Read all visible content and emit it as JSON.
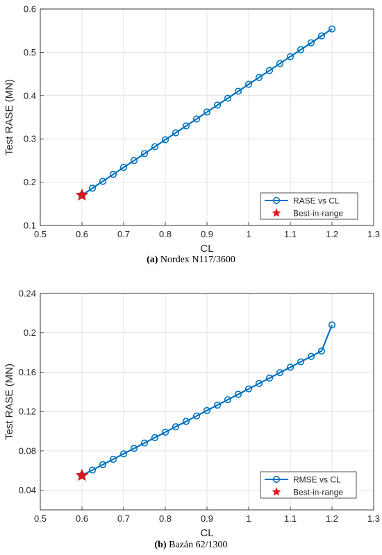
{
  "chart_data": [
    {
      "type": "line",
      "xlabel": "CL",
      "ylabel": "Test RASE (MN)",
      "xlim": [
        0.5,
        1.3
      ],
      "ylim": [
        0.1,
        0.6
      ],
      "xticks": [
        "0.5",
        "0.6",
        "0.7",
        "0.8",
        "0.9",
        "1",
        "1.1",
        "1.2",
        "1.3"
      ],
      "yticks": [
        "0.1",
        "0.2",
        "0.3",
        "0.4",
        "0.5",
        "0.6"
      ],
      "grid": true,
      "legend_position": "bottom-right",
      "series": [
        {
          "name": "RASE vs CL",
          "color": "#0072BD",
          "marker": "circle",
          "x": [
            0.6,
            0.625,
            0.65,
            0.675,
            0.7,
            0.725,
            0.75,
            0.775,
            0.8,
            0.825,
            0.85,
            0.875,
            0.9,
            0.925,
            0.95,
            0.975,
            1.0,
            1.025,
            1.05,
            1.075,
            1.1,
            1.125,
            1.15,
            1.175,
            1.2
          ],
          "y": [
            0.17,
            0.186,
            0.202,
            0.218,
            0.234,
            0.25,
            0.266,
            0.282,
            0.298,
            0.314,
            0.33,
            0.346,
            0.362,
            0.378,
            0.394,
            0.41,
            0.426,
            0.442,
            0.458,
            0.474,
            0.49,
            0.506,
            0.522,
            0.538,
            0.554
          ]
        },
        {
          "name": "Best-in-range",
          "color": "#D7191C",
          "marker": "star",
          "x": [
            0.6
          ],
          "y": [
            0.17
          ]
        }
      ]
    },
    {
      "type": "line",
      "xlabel": "CL",
      "ylabel": "Test RASE (MN)",
      "xlim": [
        0.5,
        1.3
      ],
      "ylim": [
        0.02,
        0.24
      ],
      "xticks": [
        "0.5",
        "0.6",
        "0.7",
        "0.8",
        "0.9",
        "1",
        "1.1",
        "1.2",
        "1.3"
      ],
      "yticks": [
        "0.04",
        "0.08",
        "0.12",
        "0.16",
        "0.2",
        "0.24"
      ],
      "grid": true,
      "legend_position": "bottom-right",
      "series": [
        {
          "name": "RMSE vs CL",
          "color": "#0072BD",
          "marker": "circle",
          "x": [
            0.6,
            0.625,
            0.65,
            0.675,
            0.7,
            0.725,
            0.75,
            0.775,
            0.8,
            0.825,
            0.85,
            0.875,
            0.9,
            0.925,
            0.95,
            0.975,
            1.0,
            1.025,
            1.05,
            1.075,
            1.1,
            1.125,
            1.15,
            1.175,
            1.2
          ],
          "y": [
            0.055,
            0.0605,
            0.066,
            0.0715,
            0.077,
            0.0825,
            0.088,
            0.0935,
            0.099,
            0.1045,
            0.11,
            0.1155,
            0.121,
            0.1265,
            0.132,
            0.1375,
            0.143,
            0.1485,
            0.154,
            0.1595,
            0.165,
            0.1705,
            0.176,
            0.1815,
            0.208
          ]
        },
        {
          "name": "Best-in-range",
          "color": "#D7191C",
          "marker": "star",
          "x": [
            0.6
          ],
          "y": [
            0.055
          ]
        }
      ]
    }
  ],
  "captions": [
    {
      "label": "(a)",
      "text": " Nordex N117/3600"
    },
    {
      "label": "(b)",
      "text": " Bazán 62/1300"
    }
  ]
}
